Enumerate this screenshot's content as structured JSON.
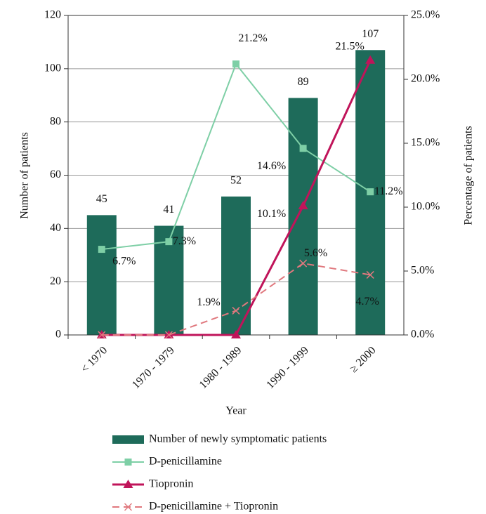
{
  "chart_data": {
    "type": "bar",
    "categories": [
      "< 1970",
      "1970 - 1979",
      "1980 - 1989",
      "1990 - 1999",
      "≥ 2000"
    ],
    "x_label": "Year",
    "y_label": "Number of patients",
    "y2_label": "Percentage of patients",
    "ylim": [
      0,
      120
    ],
    "yticks": [
      0,
      20,
      40,
      60,
      80,
      100,
      120
    ],
    "y2lim": [
      0,
      25
    ],
    "y2ticks": [
      {
        "value": 0,
        "label": "0.0%"
      },
      {
        "value": 5,
        "label": "5.0%"
      },
      {
        "value": 10,
        "label": "10.0%"
      },
      {
        "value": 15,
        "label": "15.0%"
      },
      {
        "value": 20,
        "label": "20.0%"
      },
      {
        "value": 25,
        "label": "25.0%"
      }
    ],
    "grid": true,
    "series": [
      {
        "name": "Number of newly symptomatic patients",
        "type": "bar",
        "color": "#1e6b5a",
        "values": [
          45,
          41,
          52,
          89,
          107
        ]
      },
      {
        "name": "D-penicillamine",
        "type": "line",
        "axis": "y2",
        "color": "#7ecfa6",
        "marker": "square",
        "dashed": false,
        "values": [
          6.7,
          7.3,
          21.2,
          14.6,
          11.2
        ],
        "value_labels": [
          "6.7%",
          "7.3%",
          "21.2%",
          "14.6%",
          "11.2%"
        ]
      },
      {
        "name": "Tiopronin",
        "type": "line",
        "axis": "y2",
        "color": "#c0145a",
        "marker": "triangle",
        "dashed": false,
        "values": [
          0,
          0,
          0,
          10.1,
          21.5
        ],
        "value_labels": [
          null,
          null,
          null,
          "10.1%",
          "21.5%"
        ]
      },
      {
        "name": "D-penicillamine + Tiopronin",
        "type": "line",
        "axis": "y2",
        "color": "#e0787e",
        "marker": "x",
        "dashed": true,
        "values": [
          0,
          0,
          1.9,
          5.6,
          4.7
        ],
        "value_labels": [
          null,
          null,
          "1.9%",
          "5.6%",
          "4.7%"
        ]
      }
    ]
  }
}
